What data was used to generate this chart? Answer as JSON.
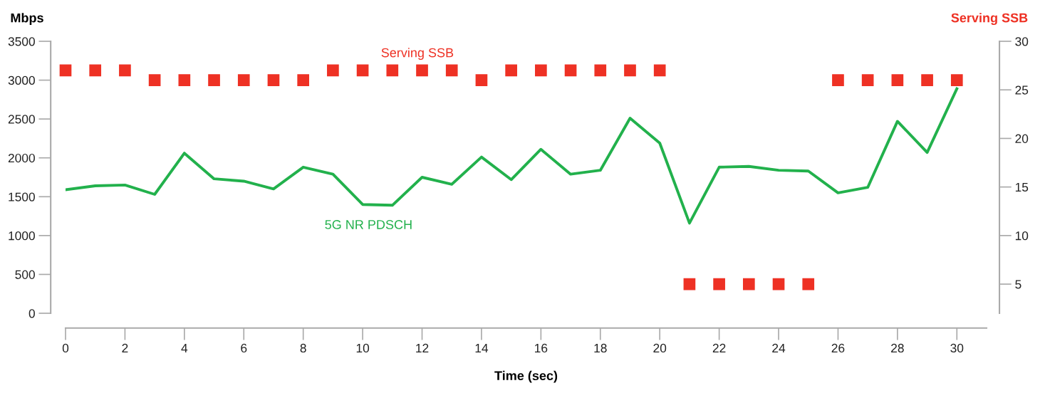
{
  "chart_data": {
    "type": "line",
    "xlabel": "Time (sec)",
    "ylabel": "Mbps",
    "y2label": "Serving SSB",
    "x": [
      0,
      1,
      2,
      3,
      4,
      5,
      6,
      7,
      8,
      9,
      10,
      11,
      12,
      13,
      14,
      15,
      16,
      17,
      18,
      19,
      20,
      21,
      22,
      23,
      24,
      25,
      26,
      27,
      28,
      29,
      30
    ],
    "series": [
      {
        "name": "5G NR PDSCH",
        "color": "#22b14c",
        "marker": "none",
        "values": [
          1590,
          1640,
          1650,
          1530,
          2060,
          1730,
          1700,
          1600,
          1880,
          1790,
          1400,
          1390,
          1750,
          1660,
          2010,
          1720,
          2110,
          1790,
          1840,
          2510,
          2190,
          1160,
          1880,
          1890,
          1840,
          1830,
          1550,
          1620,
          2470,
          2070,
          2890
        ]
      },
      {
        "name": "Serving SSB",
        "type": "scatter",
        "axis": "y2",
        "color": "#ee3124",
        "marker": "square",
        "values": [
          27,
          27,
          27,
          26,
          26,
          26,
          26,
          26,
          26,
          27,
          27,
          27,
          27,
          27,
          26,
          27,
          27,
          27,
          27,
          27,
          27,
          5,
          5,
          5,
          5,
          5,
          26,
          26,
          26,
          26,
          26
        ]
      }
    ],
    "xlim": [
      0,
      31
    ],
    "xticks": [
      0,
      2,
      4,
      6,
      8,
      10,
      12,
      14,
      16,
      18,
      20,
      22,
      24,
      26,
      28,
      30
    ],
    "ylim": [
      0,
      3500
    ],
    "yticks": [
      0,
      500,
      1000,
      1500,
      2000,
      2500,
      3000,
      3500
    ],
    "y2lim": [
      2,
      30
    ],
    "y2ticks": [
      5,
      10,
      15,
      20,
      25,
      30
    ],
    "grid": false,
    "legend": false
  }
}
